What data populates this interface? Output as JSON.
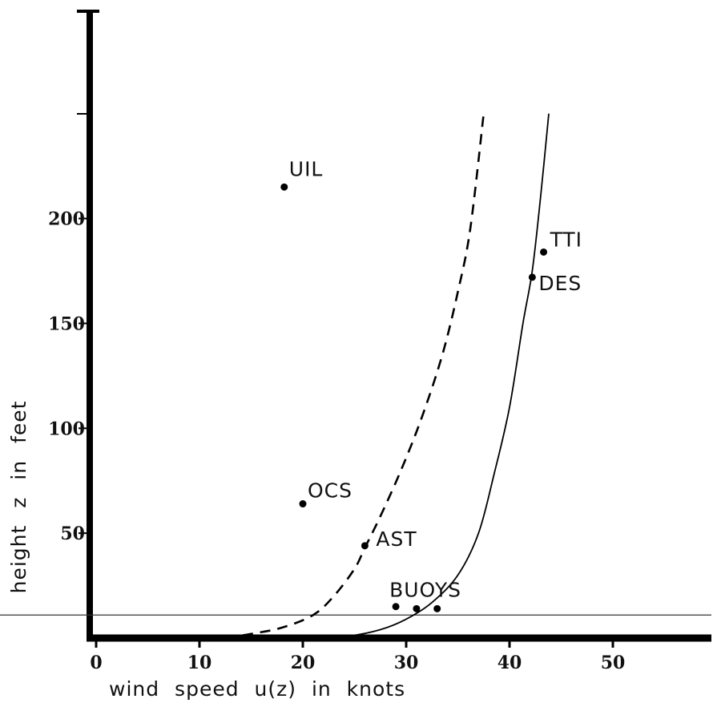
{
  "chart_data": {
    "type": "scatter",
    "title": "",
    "xlabel": "wind speed u(z) in knots",
    "ylabel": "height z in feet",
    "xlim": [
      0,
      60
    ],
    "ylim": [
      0,
      250
    ],
    "x_ticks": [
      {
        "value": 0,
        "label": "0"
      },
      {
        "value": 10,
        "label": "10"
      },
      {
        "value": 20,
        "label": "20"
      },
      {
        "value": 30,
        "label": "30"
      },
      {
        "value": 40,
        "label": "40"
      },
      {
        "value": 50,
        "label": "50"
      }
    ],
    "y_ticks": [
      {
        "value": 50,
        "label": "50"
      },
      {
        "value": 100,
        "label": "100"
      },
      {
        "value": 150,
        "label": "150"
      },
      {
        "value": 200,
        "label": "200"
      }
    ],
    "points": [
      {
        "label": "UIL",
        "x": 18.2,
        "y": 215
      },
      {
        "label": "TTI",
        "x": 43.3,
        "y": 184
      },
      {
        "label": "DES",
        "x": 42.2,
        "y": 172
      },
      {
        "label": "OCS",
        "x": 20.0,
        "y": 64
      },
      {
        "label": "AST",
        "x": 26.0,
        "y": 44
      },
      {
        "label": "BUOYS",
        "x": 29.0,
        "y": 15
      },
      {
        "label": "",
        "x": 31.0,
        "y": 14
      },
      {
        "label": "",
        "x": 33.0,
        "y": 14
      }
    ],
    "reference_line": {
      "y": 11
    },
    "curves": [
      {
        "style": "dashed",
        "points": [
          [
            12.5,
            0
          ],
          [
            15,
            2
          ],
          [
            18,
            5
          ],
          [
            21,
            11
          ],
          [
            23,
            20
          ],
          [
            25,
            33
          ],
          [
            26,
            43
          ],
          [
            27.5,
            58
          ],
          [
            29.5,
            80
          ],
          [
            31.5,
            105
          ],
          [
            33.5,
            135
          ],
          [
            35,
            165
          ],
          [
            36.2,
            195
          ],
          [
            37.5,
            250
          ]
        ]
      },
      {
        "style": "solid",
        "points": [
          [
            21,
            0
          ],
          [
            24.5,
            1
          ],
          [
            27.5,
            4
          ],
          [
            30,
            9
          ],
          [
            32.5,
            17
          ],
          [
            35,
            30
          ],
          [
            37,
            50
          ],
          [
            38.5,
            78
          ],
          [
            40,
            110
          ],
          [
            41.3,
            150
          ],
          [
            42.2,
            175
          ],
          [
            43,
            210
          ],
          [
            43.8,
            250
          ]
        ]
      }
    ],
    "grid": false,
    "legend": "none"
  }
}
